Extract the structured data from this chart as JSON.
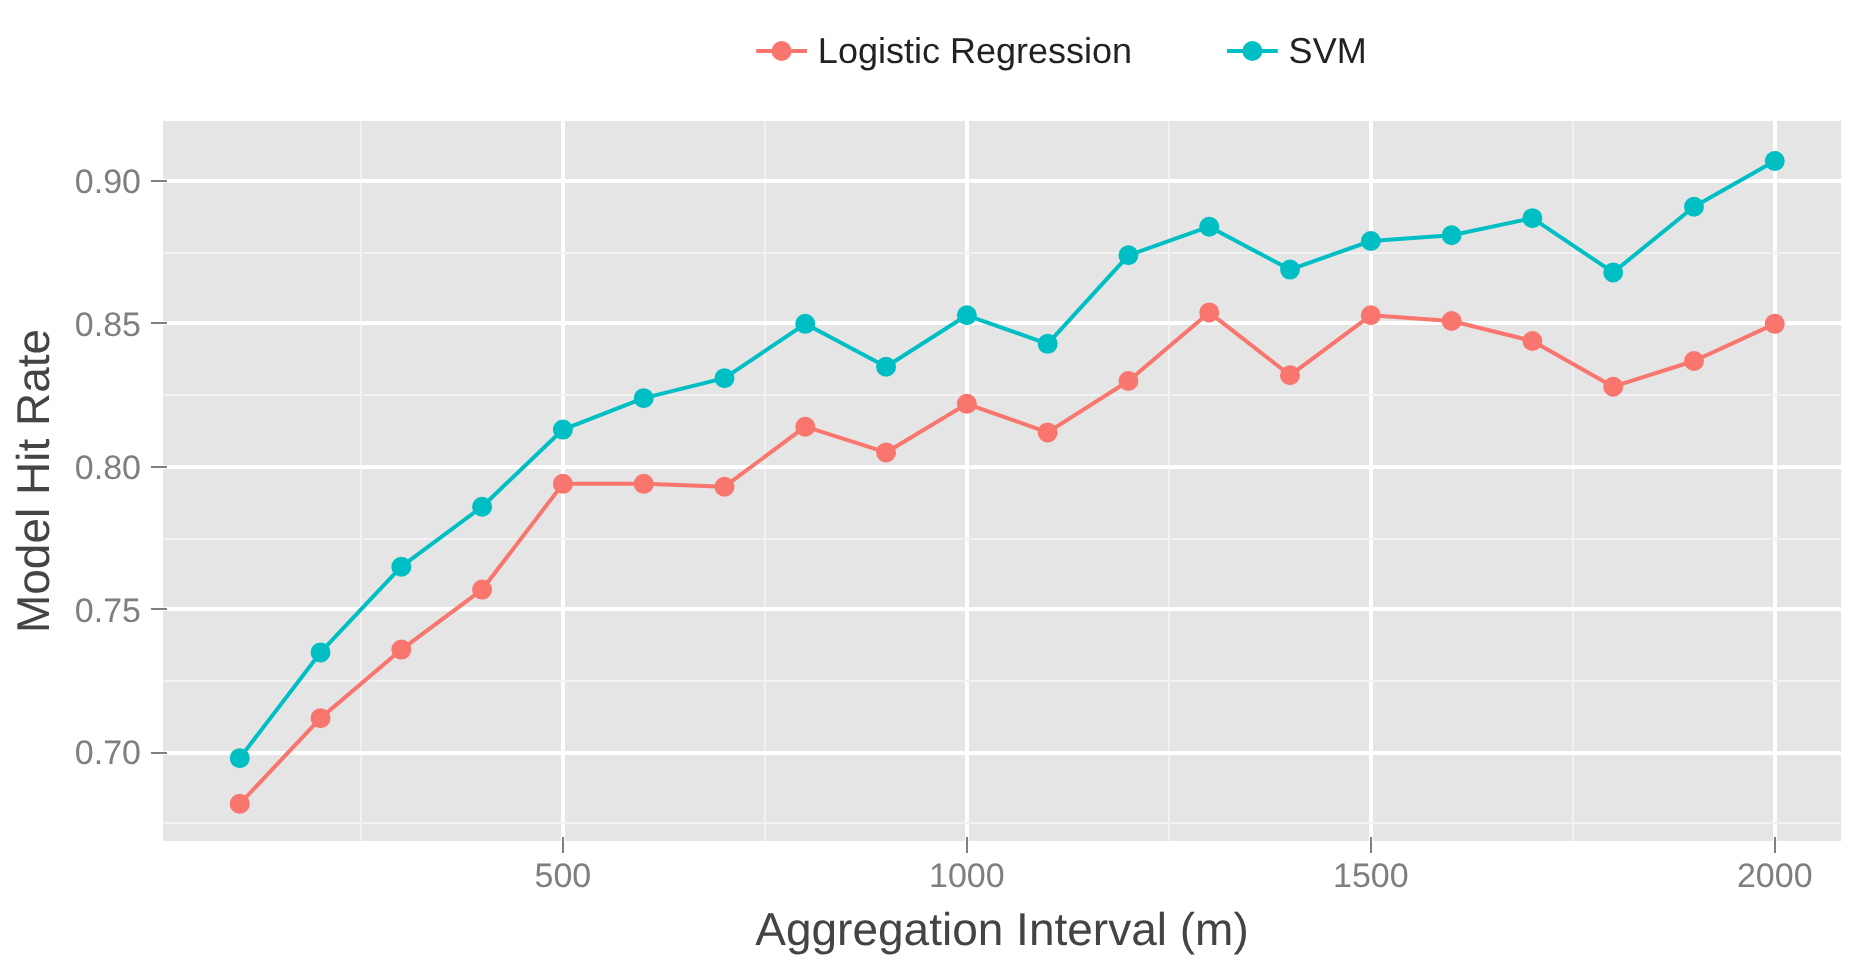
{
  "chart_data": {
    "type": "line",
    "xlabel": "Aggregation Interval (m)",
    "ylabel": "Model Hit Rate",
    "x": [
      100,
      200,
      300,
      400,
      500,
      600,
      700,
      800,
      900,
      1000,
      1100,
      1200,
      1300,
      1400,
      1500,
      1600,
      1700,
      1800,
      1900,
      2000
    ],
    "series": [
      {
        "name": "Logistic Regression",
        "color": "#f8766d",
        "values": [
          0.682,
          0.712,
          0.736,
          0.757,
          0.794,
          0.794,
          0.793,
          0.814,
          0.805,
          0.822,
          0.812,
          0.83,
          0.854,
          0.832,
          0.853,
          0.851,
          0.844,
          0.828,
          0.837,
          0.85
        ]
      },
      {
        "name": "SVM",
        "color": "#00bfc4",
        "values": [
          0.698,
          0.735,
          0.765,
          0.786,
          0.813,
          0.824,
          0.831,
          0.85,
          0.835,
          0.853,
          0.843,
          0.874,
          0.884,
          0.869,
          0.879,
          0.881,
          0.887,
          0.868,
          0.891,
          0.907
        ]
      }
    ],
    "xlim": [
      5,
      2082
    ],
    "ylim": [
      0.669,
      0.921
    ],
    "xticks": [
      500,
      1000,
      1500,
      2000
    ],
    "yticks": [
      {
        "value": 0.7,
        "label": "0.70"
      },
      {
        "value": 0.75,
        "label": "0.75"
      },
      {
        "value": 0.8,
        "label": "0.80"
      },
      {
        "value": 0.85,
        "label": "0.85"
      },
      {
        "value": 0.9,
        "label": "0.90"
      }
    ],
    "grid": true,
    "legend": "top",
    "marker": "circle",
    "line_style": "solid"
  }
}
